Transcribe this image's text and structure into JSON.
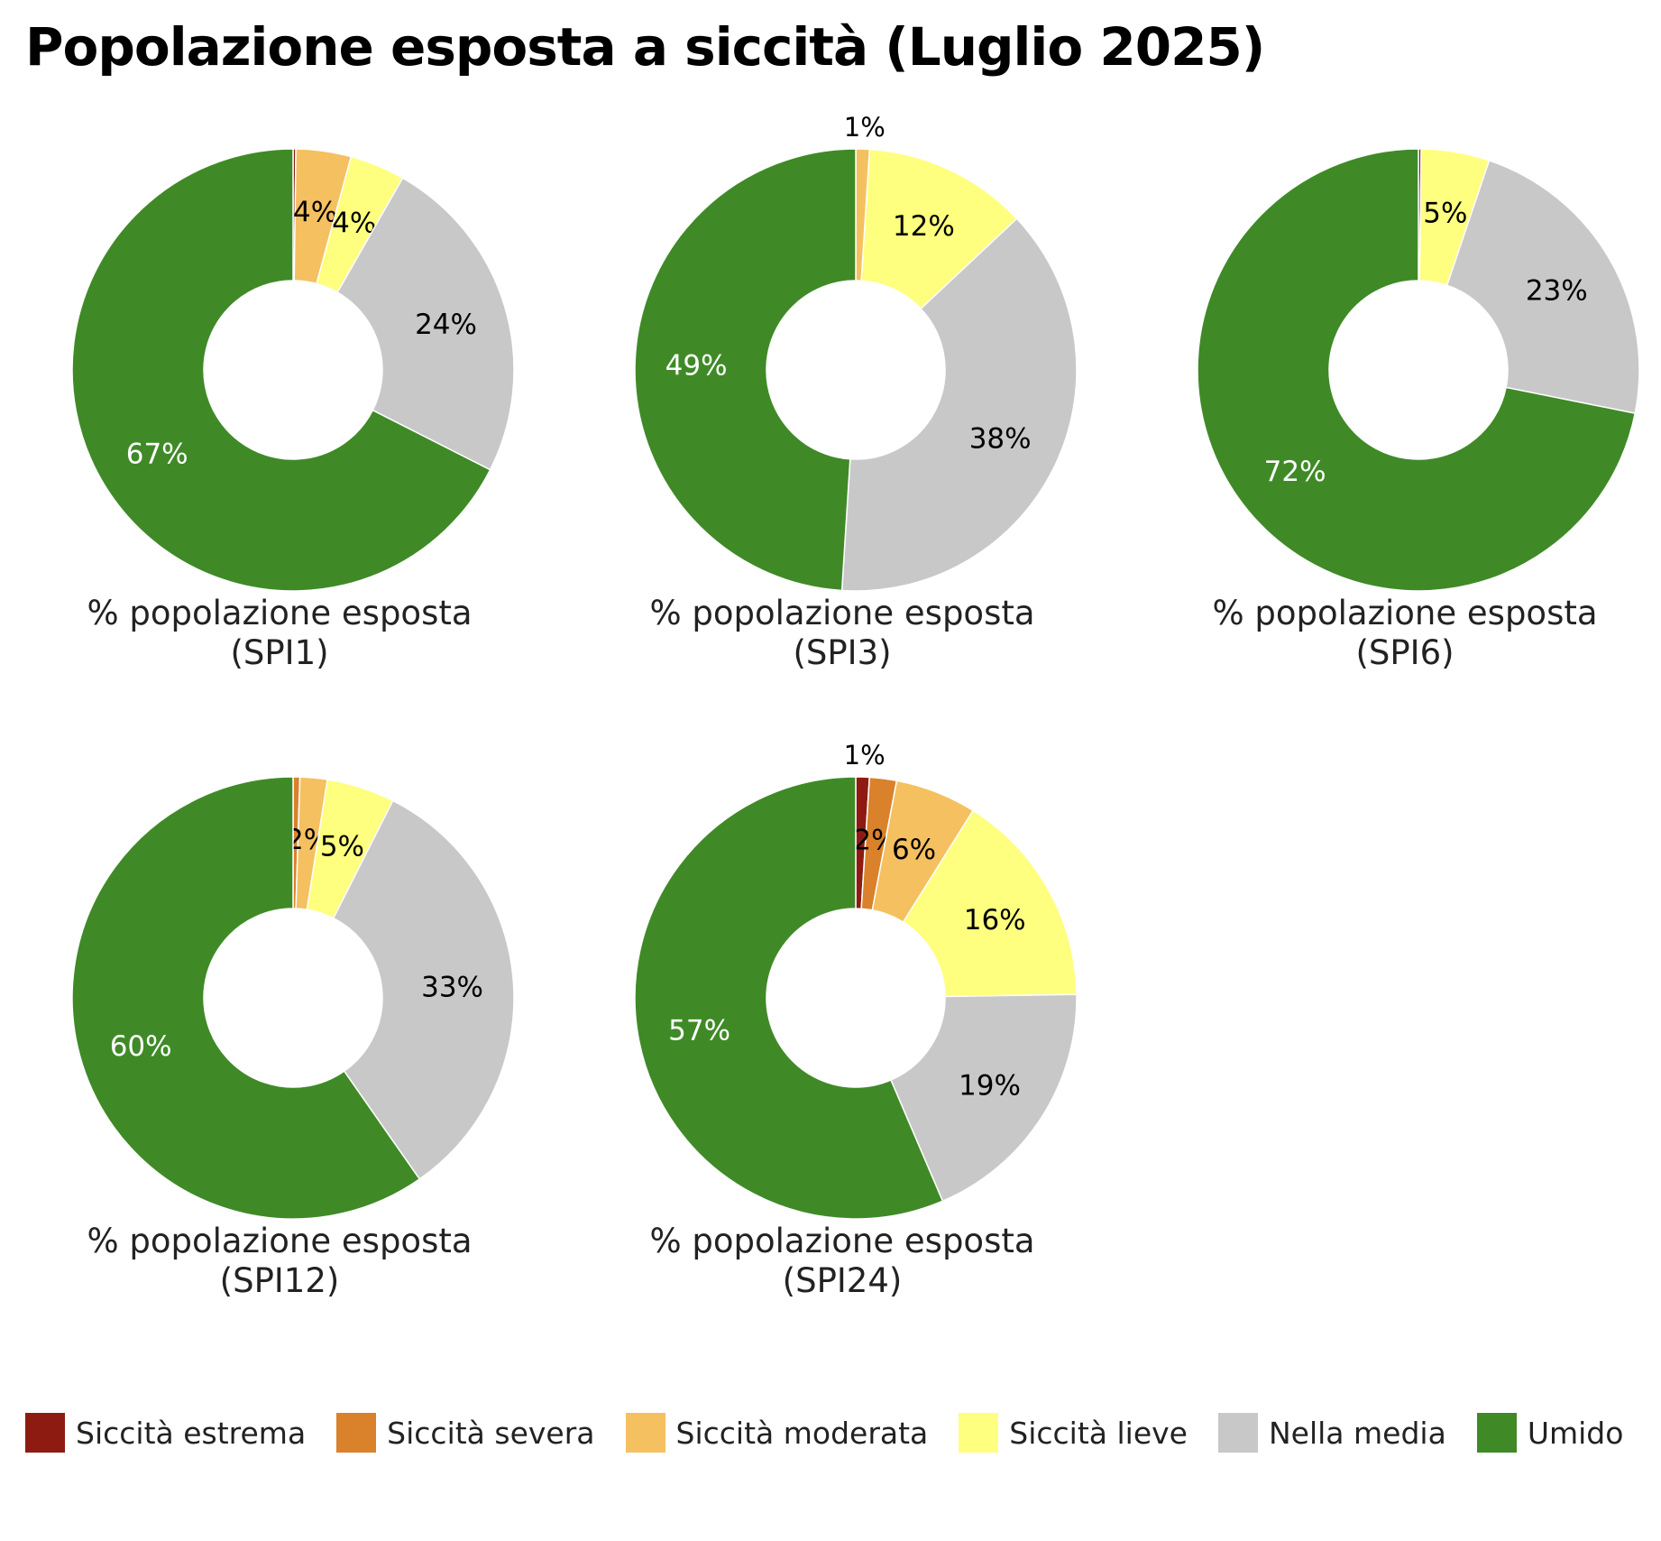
{
  "title": "Popolazione esposta a siccità (Luglio 2025)",
  "categories": [
    "Siccità estrema",
    "Siccità severa",
    "Siccità moderata",
    "Siccità lieve",
    "Nella media",
    "Umido"
  ],
  "colors": [
    "#8e1b12",
    "#d9822b",
    "#f5c060",
    "#ffff7f",
    "#c8c8c8",
    "#3f8a27"
  ],
  "label_colors": [
    "#000000",
    "#000000",
    "#000000",
    "#000000",
    "#000000",
    "#ffffff"
  ],
  "chart_data": [
    {
      "type": "pie",
      "caption_line1": "% popolazione esposta",
      "caption_line2": "(SPI1)",
      "values": [
        0.2,
        0,
        4,
        4,
        24,
        67
      ],
      "labels": [
        "",
        "",
        "4%",
        "4%",
        "24%",
        "67%"
      ]
    },
    {
      "type": "pie",
      "caption_line1": "% popolazione esposta",
      "caption_line2": "(SPI3)",
      "values": [
        0,
        0,
        1,
        12,
        38,
        49
      ],
      "labels": [
        "",
        "",
        "1%",
        "12%",
        "38%",
        "49%"
      ]
    },
    {
      "type": "pie",
      "caption_line1": "% popolazione esposta",
      "caption_line2": "(SPI6)",
      "values": [
        0.2,
        0,
        0,
        5,
        23,
        72
      ],
      "labels": [
        "",
        "",
        "",
        "5%",
        "23%",
        "72%"
      ]
    },
    {
      "type": "pie",
      "caption_line1": "% popolazione esposta",
      "caption_line2": "(SPI12)",
      "values": [
        0,
        0.5,
        2,
        5,
        33,
        60
      ],
      "labels": [
        "",
        "",
        "2%",
        "5%",
        "33%",
        "60%"
      ]
    },
    {
      "type": "pie",
      "caption_line1": "% popolazione esposta",
      "caption_line2": "(SPI24)",
      "values": [
        1,
        2,
        6,
        16,
        19,
        57
      ],
      "labels": [
        "1%",
        "2%",
        "6%",
        "16%",
        "19%",
        "57%"
      ]
    }
  ]
}
